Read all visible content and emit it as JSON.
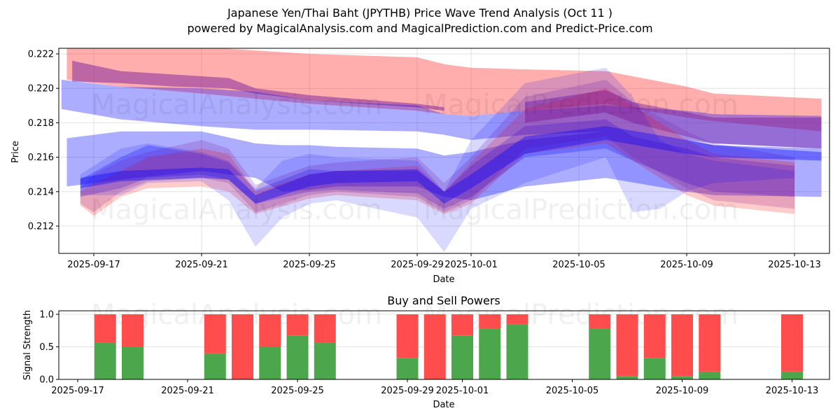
{
  "header": {
    "title": "Japanese Yen/Thai Baht (JPYTHB) Price Wave Trend Analysis (Oct 11 )",
    "subtitle": "powered by MagicalAnalysis.com and MagicalPrediction.com and Predict-Price.com"
  },
  "watermarks": [
    "MagicalAnalysis.com",
    "MagicalPrediction.com"
  ],
  "chart_data": [
    {
      "type": "area",
      "title": "",
      "xlabel": "Date",
      "ylabel": "Price",
      "ylim": [
        0.2104,
        0.2223
      ],
      "xlim_days_from_2025_09_17": [
        -1.3,
        27.3
      ],
      "x_ticks": [
        "2025-09-17",
        "2025-09-21",
        "2025-09-25",
        "2025-09-29",
        "2025-10-01",
        "2025-10-05",
        "2025-10-09",
        "2025-10-13"
      ],
      "x_tick_days": [
        0,
        4,
        8,
        12,
        14,
        18,
        22,
        26
      ],
      "y_ticks": [
        "0.212",
        "0.214",
        "0.216",
        "0.218",
        "0.220",
        "0.222"
      ],
      "y_tick_values": [
        0.212,
        0.214,
        0.216,
        0.218,
        0.22,
        0.222
      ],
      "grid": true,
      "colors": {
        "buy": "#0000ff",
        "sell": "#ff0000"
      },
      "bands": [
        {
          "color": "red",
          "opacity": 0.32,
          "x": [
            -1,
            1,
            4,
            8,
            12,
            13,
            14,
            16,
            19,
            22,
            23,
            27
          ],
          "low": [
            0.2205,
            0.2201,
            0.2197,
            0.2191,
            0.2187,
            0.2185,
            0.2184,
            0.2187,
            0.2191,
            0.2183,
            0.2181,
            0.2175
          ],
          "high": [
            0.2224,
            0.2224,
            0.2224,
            0.222,
            0.2218,
            0.2214,
            0.2212,
            0.2211,
            0.221,
            0.2201,
            0.2197,
            0.2194
          ]
        },
        {
          "color": "purple",
          "opacity": 0.5,
          "x": [
            -0.8,
            1,
            3,
            5,
            6,
            8,
            12,
            13
          ],
          "low": [
            0.2204,
            0.2203,
            0.2201,
            0.22,
            0.2197,
            0.2193,
            0.2189,
            0.2187
          ],
          "high": [
            0.2216,
            0.221,
            0.2208,
            0.2206,
            0.22,
            0.2196,
            0.2191,
            0.2189
          ]
        },
        {
          "color": "blue",
          "opacity": 0.32,
          "x": [
            -1.2,
            1,
            4,
            6,
            8,
            12,
            13,
            14,
            16,
            19,
            22,
            23,
            27
          ],
          "low": [
            0.2188,
            0.2182,
            0.2178,
            0.2176,
            0.2176,
            0.2175,
            0.2173,
            0.217,
            0.2173,
            0.2175,
            0.217,
            0.2168,
            0.2165
          ],
          "high": [
            0.2205,
            0.2201,
            0.22,
            0.2198,
            0.2193,
            0.219,
            0.2185,
            0.2184,
            0.2187,
            0.219,
            0.2187,
            0.2185,
            0.2184
          ]
        },
        {
          "color": "blue",
          "opacity": 0.32,
          "x": [
            -1,
            1,
            4,
            6,
            7,
            8,
            9,
            12,
            13,
            14,
            16,
            19,
            22,
            23,
            27
          ],
          "low": [
            0.2143,
            0.2147,
            0.2152,
            0.2148,
            0.214,
            0.2141,
            0.2143,
            0.2143,
            0.2137,
            0.2135,
            0.2143,
            0.2148,
            0.214,
            0.2138,
            0.2137
          ],
          "high": [
            0.2171,
            0.2175,
            0.2175,
            0.2168,
            0.2167,
            0.2167,
            0.2166,
            0.2165,
            0.2161,
            0.2163,
            0.217,
            0.2175,
            0.217,
            0.2167,
            0.2165
          ]
        },
        {
          "color": "purple",
          "opacity": 0.45,
          "x": [
            16,
            19,
            20,
            22,
            23,
            27
          ],
          "low": [
            0.218,
            0.2186,
            0.218,
            0.2172,
            0.2168,
            0.2165
          ],
          "high": [
            0.2192,
            0.2199,
            0.2192,
            0.2186,
            0.2183,
            0.2183
          ]
        },
        {
          "color": "blue",
          "opacity": 0.25,
          "x": [
            -0.5,
            1,
            2,
            4,
            5,
            6,
            8,
            9,
            12,
            13,
            14,
            16,
            19,
            20,
            22,
            23,
            26
          ],
          "low": [
            0.2137,
            0.2142,
            0.2148,
            0.215,
            0.2147,
            0.2133,
            0.214,
            0.2141,
            0.2139,
            0.213,
            0.2137,
            0.216,
            0.2165,
            0.2158,
            0.2145,
            0.214,
            0.2137
          ],
          "high": [
            0.2147,
            0.216,
            0.2167,
            0.2162,
            0.2157,
            0.2141,
            0.2153,
            0.2152,
            0.2152,
            0.214,
            0.2155,
            0.2178,
            0.2182,
            0.2172,
            0.2165,
            0.216,
            0.2155
          ]
        },
        {
          "color": "purple",
          "opacity": 0.22,
          "x": [
            -0.5,
            0,
            1,
            2,
            4,
            5,
            6,
            8,
            9,
            12,
            13,
            14,
            16,
            19,
            20,
            22,
            23,
            26
          ],
          "low": [
            0.2133,
            0.2128,
            0.214,
            0.2146,
            0.2148,
            0.2145,
            0.2128,
            0.2138,
            0.214,
            0.2137,
            0.2128,
            0.2135,
            0.2165,
            0.2172,
            0.216,
            0.2142,
            0.2135,
            0.213
          ],
          "high": [
            0.2142,
            0.215,
            0.2158,
            0.2163,
            0.217,
            0.2165,
            0.2144,
            0.2155,
            0.2157,
            0.216,
            0.2145,
            0.216,
            0.2195,
            0.2205,
            0.2192,
            0.2175,
            0.2168,
            0.216
          ]
        },
        {
          "color": "red",
          "opacity": 0.2,
          "x": [
            -0.5,
            0,
            1,
            2,
            4,
            5,
            6,
            8,
            9,
            12,
            13,
            14,
            16,
            19,
            20,
            22,
            23,
            26
          ],
          "low": [
            0.2132,
            0.2126,
            0.2137,
            0.2142,
            0.2143,
            0.214,
            0.2127,
            0.2136,
            0.2138,
            0.2135,
            0.2127,
            0.2133,
            0.2162,
            0.2168,
            0.2158,
            0.2138,
            0.2132,
            0.2127
          ],
          "high": [
            0.214,
            0.2145,
            0.2152,
            0.216,
            0.2165,
            0.2162,
            0.214,
            0.215,
            0.2152,
            0.2155,
            0.214,
            0.2157,
            0.2188,
            0.22,
            0.219,
            0.217,
            0.2162,
            0.2157
          ]
        },
        {
          "color": "blue",
          "opacity": 0.15,
          "x": [
            -0.5,
            1,
            2,
            4,
            5,
            6,
            7,
            8,
            9,
            12,
            13,
            14,
            16,
            19,
            20,
            21,
            22,
            23,
            26
          ],
          "low": [
            0.2138,
            0.2138,
            0.2145,
            0.2146,
            0.2135,
            0.2108,
            0.2125,
            0.2133,
            0.2135,
            0.2125,
            0.2105,
            0.213,
            0.2145,
            0.216,
            0.2128,
            0.213,
            0.214,
            0.2145,
            0.2148
          ],
          "high": [
            0.215,
            0.2165,
            0.2168,
            0.2163,
            0.2158,
            0.2142,
            0.2158,
            0.2162,
            0.216,
            0.2158,
            0.214,
            0.217,
            0.2203,
            0.2212,
            0.2195,
            0.217,
            0.2162,
            0.2158,
            0.2152
          ]
        },
        {
          "color": "blue",
          "opacity": 0.38,
          "x": [
            -0.5,
            1,
            4,
            5,
            6,
            8,
            9,
            12,
            13,
            14,
            16,
            19,
            22,
            23,
            27
          ],
          "low": [
            0.2142,
            0.2146,
            0.2148,
            0.2147,
            0.2133,
            0.2143,
            0.2145,
            0.2146,
            0.2133,
            0.2142,
            0.2162,
            0.217,
            0.2162,
            0.216,
            0.2158
          ],
          "high": [
            0.2148,
            0.2152,
            0.2154,
            0.2153,
            0.2138,
            0.215,
            0.2152,
            0.2153,
            0.214,
            0.215,
            0.2172,
            0.2178,
            0.217,
            0.2167,
            0.2163
          ]
        }
      ]
    },
    {
      "type": "bar",
      "title": "Buy and Sell Powers",
      "xlabel": "Date",
      "ylabel": "Signal Strength",
      "ylim": [
        0,
        1.05
      ],
      "x_ticks": [
        "2025-09-17",
        "2025-09-21",
        "2025-09-25",
        "2025-09-29",
        "2025-10-01",
        "2025-10-05",
        "2025-10-09",
        "2025-10-13"
      ],
      "x_tick_days": [
        0,
        4,
        8,
        12,
        14,
        18,
        22,
        26
      ],
      "y_ticks": [
        "0.0",
        "0.5",
        "1.0"
      ],
      "y_tick_values": [
        0,
        0.5,
        1.0
      ],
      "grid": true,
      "colors": {
        "buy": "#4ca64c",
        "sell": "#ff4c4c"
      },
      "categories": [
        "2025-09-18",
        "2025-09-19",
        "2025-09-22",
        "2025-09-23",
        "2025-09-24",
        "2025-09-25",
        "2025-09-26",
        "2025-09-29",
        "2025-09-30",
        "2025-10-01",
        "2025-10-02",
        "2025-10-03",
        "2025-10-06",
        "2025-10-07",
        "2025-10-08",
        "2025-10-09",
        "2025-10-10",
        "2025-10-13"
      ],
      "days": [
        1,
        2,
        5,
        6,
        7,
        8,
        9,
        12,
        13,
        14,
        15,
        16,
        19,
        20,
        21,
        22,
        23,
        26
      ],
      "series": [
        {
          "name": "Buy",
          "values": [
            0.56,
            0.5,
            0.4,
            0.0,
            0.5,
            0.67,
            0.56,
            0.33,
            0.0,
            0.67,
            0.78,
            0.84,
            0.78,
            0.05,
            0.33,
            0.05,
            0.12,
            0.12
          ]
        },
        {
          "name": "Sell",
          "values": [
            0.44,
            0.5,
            0.6,
            1.0,
            0.5,
            0.33,
            0.44,
            0.67,
            1.0,
            0.33,
            0.22,
            0.16,
            0.22,
            0.95,
            0.67,
            0.95,
            0.88,
            0.88
          ]
        }
      ]
    }
  ]
}
